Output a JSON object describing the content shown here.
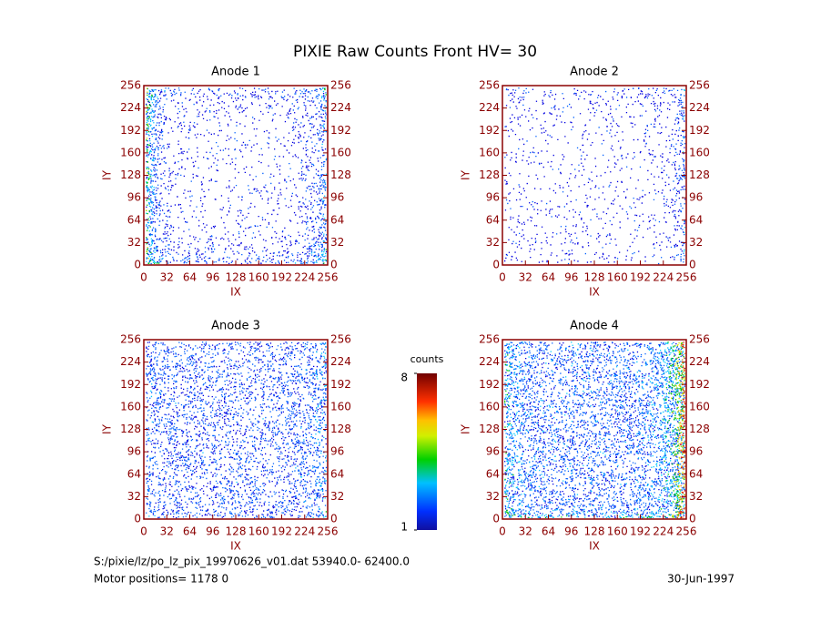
{
  "title": "PIXIE Raw Counts Front HV= 30",
  "chart_data": [
    {
      "type": "heatmap",
      "title": "Anode 1",
      "xlabel": "IX",
      "ylabel": "IY",
      "xlim": [
        0,
        256
      ],
      "ylim": [
        0,
        256
      ],
      "xticks": [
        0,
        32,
        64,
        96,
        128,
        160,
        192,
        224,
        256
      ],
      "yticks": [
        0,
        32,
        64,
        96,
        128,
        160,
        192,
        224,
        256
      ]
    },
    {
      "type": "heatmap",
      "title": "Anode 2",
      "xlabel": "IX",
      "ylabel": "IY",
      "xlim": [
        0,
        256
      ],
      "ylim": [
        0,
        256
      ],
      "xticks": [
        0,
        32,
        64,
        96,
        128,
        160,
        192,
        224,
        256
      ],
      "yticks": [
        0,
        32,
        64,
        96,
        128,
        160,
        192,
        224,
        256
      ]
    },
    {
      "type": "heatmap",
      "title": "Anode 3",
      "xlabel": "IX",
      "ylabel": "IY",
      "xlim": [
        0,
        256
      ],
      "ylim": [
        0,
        256
      ],
      "xticks": [
        0,
        32,
        64,
        96,
        128,
        160,
        192,
        224,
        256
      ],
      "yticks": [
        0,
        32,
        64,
        96,
        128,
        160,
        192,
        224,
        256
      ]
    },
    {
      "type": "heatmap",
      "title": "Anode 4",
      "xlabel": "IX",
      "ylabel": "IY",
      "xlim": [
        0,
        256
      ],
      "ylim": [
        0,
        256
      ],
      "xticks": [
        0,
        32,
        64,
        96,
        128,
        160,
        192,
        224,
        256
      ],
      "yticks": [
        0,
        32,
        64,
        96,
        128,
        160,
        192,
        224,
        256
      ]
    }
  ],
  "colorbar": {
    "label": "counts",
    "lim": [
      1,
      8
    ],
    "ticks": [
      1,
      8
    ]
  },
  "footer": {
    "file": "S:/pixie/lz/po_lz_pix_19970626_v01.dat   53940.0- 62400.0",
    "motor": "Motor positions= 1178 0",
    "date": "30-Jun-1997"
  }
}
